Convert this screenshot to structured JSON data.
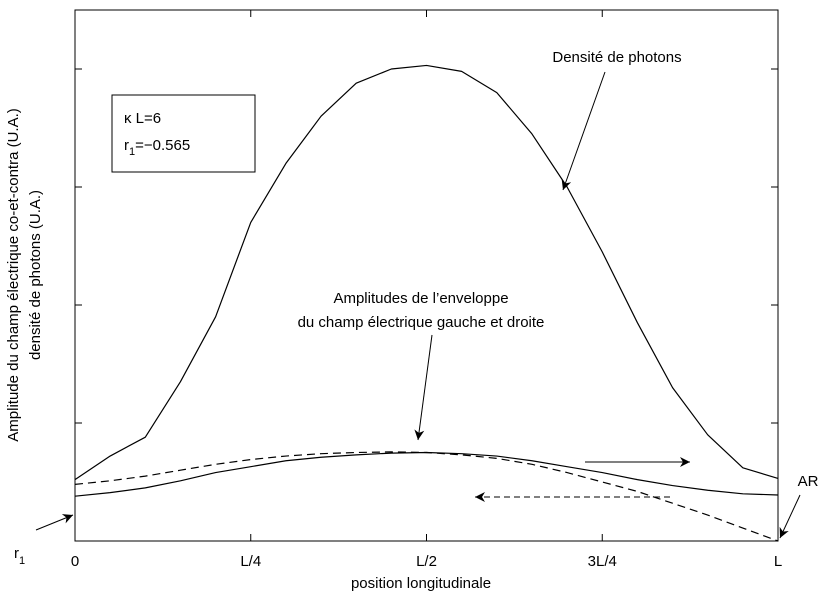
{
  "chart_data": {
    "type": "line",
    "xlabel": "position longitudinale",
    "ylabel": [
      "Amplitude du champ électrique co-et-contra (U.A.)",
      "densité de photons (U.A.)"
    ],
    "x": [
      0,
      0.05,
      0.1,
      0.15,
      0.2,
      0.25,
      0.3,
      0.35,
      0.4,
      0.45,
      0.5,
      0.55,
      0.6,
      0.65,
      0.7,
      0.75,
      0.8,
      0.85,
      0.9,
      0.95,
      1
    ],
    "series": [
      {
        "color": "#000000",
        "dash": false,
        "values": [
          0.52,
          0.72,
          0.88,
          1.35,
          1.9,
          2.7,
          3.2,
          3.6,
          3.88,
          4.0,
          4.03,
          3.98,
          3.8,
          3.45,
          3.0,
          2.45,
          1.85,
          1.3,
          0.9,
          0.62,
          0.53
        ]
      },
      {
        "color": "#000000",
        "dash": false,
        "values": [
          0.38,
          0.41,
          0.45,
          0.51,
          0.58,
          0.63,
          0.68,
          0.71,
          0.73,
          0.745,
          0.75,
          0.74,
          0.72,
          0.68,
          0.63,
          0.58,
          0.52,
          0.47,
          0.43,
          0.4,
          0.39
        ]
      },
      {
        "color": "#000000",
        "dash": true,
        "values": [
          0.48,
          0.51,
          0.55,
          0.6,
          0.65,
          0.69,
          0.72,
          0.74,
          0.75,
          0.755,
          0.75,
          0.73,
          0.7,
          0.65,
          0.58,
          0.5,
          0.42,
          0.32,
          0.22,
          0.11,
          0.0
        ]
      }
    ],
    "xlim": [
      0,
      1
    ],
    "xticks": [
      0,
      {
        "value": 0.25,
        "label": "L/4"
      },
      {
        "value": 0.5,
        "label": "L/2"
      },
      {
        "value": 0.75,
        "label": "3L/4"
      },
      {
        "value": 1,
        "label": "L"
      }
    ],
    "ylim": [
      0,
      4.5
    ],
    "yticks": [
      0,
      1,
      2,
      3,
      4
    ],
    "annotations": {
      "photons": "Densité de photons",
      "envelope": [
        "Amplitudes de l’enveloppe",
        "du champ électrique gauche et droite"
      ],
      "ar": "AR",
      "r1": {
        "base": "r",
        "sub": "1"
      },
      "params": {
        "kappa": "κ L=6",
        "r_base": "r",
        "r_sub": "1",
        "r_value": "=−0.565"
      }
    }
  }
}
